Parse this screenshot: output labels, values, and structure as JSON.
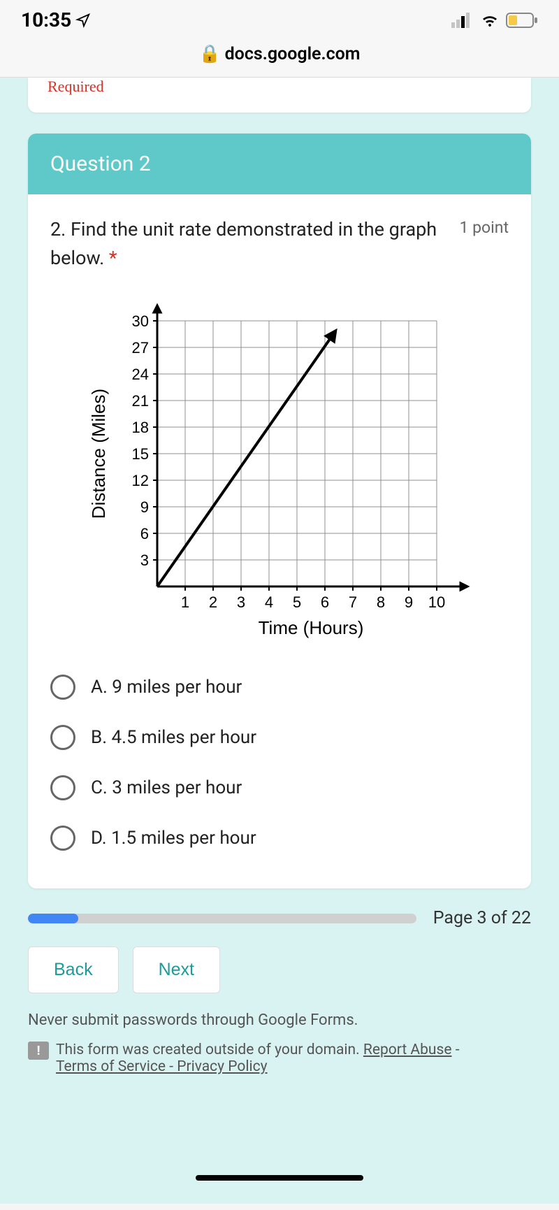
{
  "status": {
    "time": "10:35",
    "location_glyph": "➤"
  },
  "browser": {
    "url": "docs.google.com"
  },
  "required_label": "Required",
  "question": {
    "header": "Question 2",
    "text": "2. Find the unit rate demonstrated in the graph below.",
    "points": "1 point"
  },
  "chart": {
    "type": "line",
    "y_label": "Distance (Miles)",
    "x_label": "Time (Hours)",
    "y_ticks": [
      3,
      6,
      9,
      12,
      15,
      18,
      21,
      24,
      27,
      30
    ],
    "x_ticks": [
      1,
      2,
      3,
      4,
      5,
      6,
      7,
      8,
      9,
      10
    ],
    "line_start": [
      0,
      0
    ],
    "line_end": [
      6.3,
      28.5
    ],
    "grid_color": "#8f8f8f",
    "axis_color": "#000000",
    "line_color": "#000000",
    "line_width": 4,
    "tick_font_size": 22,
    "label_font_size": 26
  },
  "options": {
    "a": "A. 9 miles per hour",
    "b": "B. 4.5 miles per hour",
    "c": "C. 3 miles per hour",
    "d": "D. 1.5 miles per hour"
  },
  "progress": {
    "percent": 13,
    "label": "Page 3 of 22"
  },
  "nav": {
    "back": "Back",
    "next": "Next"
  },
  "footer": {
    "warning": "Never submit passwords through Google Forms.",
    "created": "This form was created outside of your domain.",
    "report": "Report Abuse",
    "tos": "Terms of Service - Privacy Policy"
  }
}
